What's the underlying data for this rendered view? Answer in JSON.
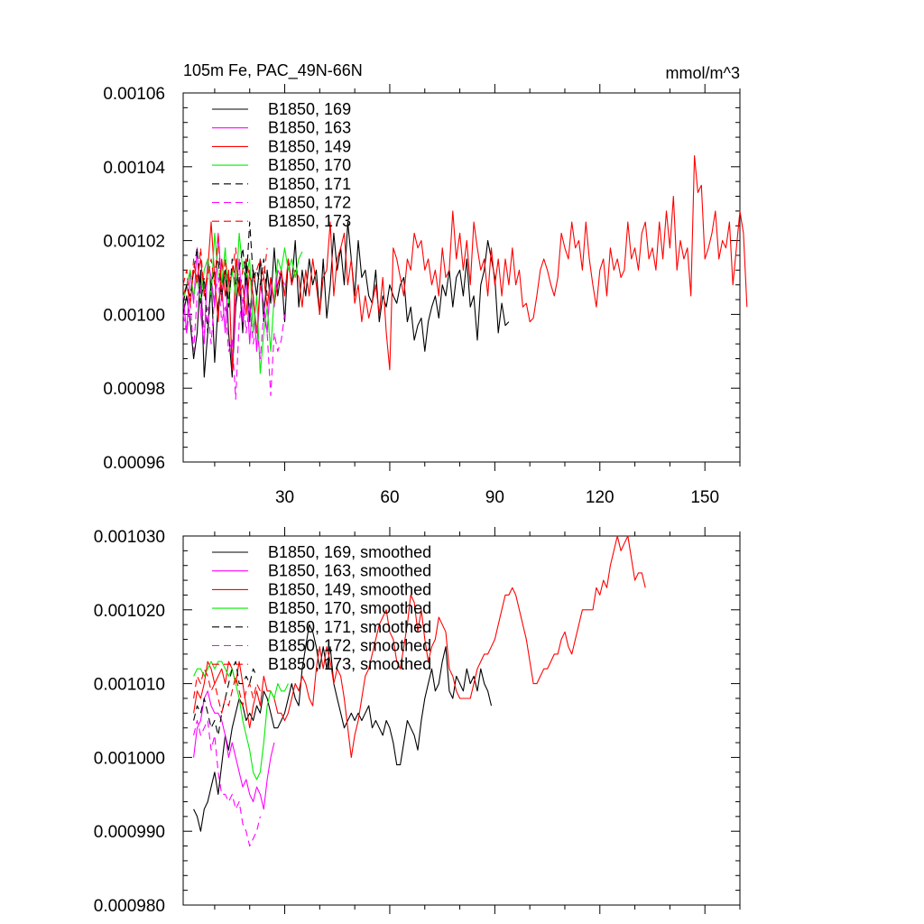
{
  "figure": {
    "title_left": "105m Fe, PAC_49N-66N",
    "title_right": "mmol/m^3"
  },
  "colors": {
    "169": "#000000",
    "163": "#ff00ff",
    "149": "#ff0000",
    "170": "#00ee00",
    "171": "#000000",
    "172": "#ff00ff",
    "173": "#ff0000"
  },
  "chart_data": [
    {
      "type": "line",
      "title": "105m Fe, PAC_49N-66N",
      "units": "mmol/m^3",
      "xlabel": "",
      "ylabel": "",
      "xlim": [
        1,
        160
      ],
      "ylim": [
        0.00096,
        0.00106
      ],
      "xticks": [
        30,
        60,
        90,
        120,
        150
      ],
      "xtick_labels": [
        "30",
        "60",
        "90",
        "120",
        "150"
      ],
      "yticks": [
        0.00096,
        0.00098,
        0.001,
        0.00102,
        0.00104,
        0.00106
      ],
      "ytick_labels": [
        "0.00096",
        "0.00098",
        "0.00100",
        "0.00102",
        "0.00104",
        "0.00106"
      ],
      "legend_position": "top-left",
      "series": [
        {
          "name": "B1850, 169",
          "id": "169",
          "dash": "solid",
          "x0": 1,
          "values": [
            0.001,
            0.001005,
            0.000998,
            0.000988,
            0.000995,
            0.001012,
            0.000983,
            0.000995,
            0.00101,
            0.000987,
            0.001003,
            0.001008,
            0.001012,
            0.000995,
            0.000983,
            0.001002,
            0.00101,
            0.000995,
            0.001015,
            0.000998,
            0.001012,
            0.001005,
            0.001015,
            0.000998,
            0.001012,
            0.001003,
            0.001018,
            0.001005,
            0.001012,
            0.000998,
            0.001015,
            0.001008,
            0.00102,
            0.001002,
            0.001012,
            0.001005,
            0.001015,
            0.001008,
            0.001012,
            0.001,
            0.001015,
            0.000999,
            0.001008,
            0.001022,
            0.001012,
            0.001018,
            0.001008,
            0.001025,
            0.001015,
            0.001005,
            0.00102,
            0.00101,
            0.001012,
            0.001005,
            0.001003,
            0.001012,
            0.000998,
            0.001005,
            0.001002,
            0.001008,
            0.001005,
            0.001003,
            0.001008,
            0.00101,
            0.000998,
            0.001002,
            0.000993,
            0.000997,
            0.000999,
            0.00099,
            0.000998,
            0.001002,
            0.001005,
            0.000999,
            0.001008,
            0.001005,
            0.001012,
            0.001002,
            0.00101,
            0.001012,
            0.001005,
            0.001015,
            0.001002,
            0.001005,
            0.000993,
            0.001008,
            0.001012,
            0.00102,
            0.001015,
            0.00101,
            0.000995,
            0.001003,
            0.000997,
            0.000998
          ]
        },
        {
          "name": "B1850, 163",
          "id": "163",
          "dash": "solid",
          "x0": 1,
          "values": [
            0.001005,
            0.000995,
            0.001012,
            0.001003,
            0.001018,
            0.001,
            0.000992,
            0.001015,
            0.00101,
            0.001002,
            0.001022,
            0.001008,
            0.000995,
            0.001012,
            0.000985,
            0.001005,
            0.001015,
            0.000998,
            0.00101,
            0.000992,
            0.001005,
            0.00099,
            0.001008,
            0.001003,
            0.000995,
            0.00101,
            0.001002,
            0.001012,
            0.00101,
            0.001008
          ]
        },
        {
          "name": "B1850, 149",
          "id": "149",
          "dash": "solid",
          "x0": 1,
          "values": [
            0.001005,
            0.001008,
            0.001003,
            0.001012,
            0.00101,
            0.001015,
            0.001005,
            0.001012,
            0.001025,
            0.00101,
            0.000998,
            0.001015,
            0.001005,
            0.001012,
            0.000985,
            0.001015,
            0.001005,
            0.001008,
            0.001,
            0.001012,
            0.001005,
            0.000995,
            0.001008,
            0.00101,
            0.001002,
            0.00101,
            0.001003,
            0.001008,
            0.001012,
            0.001005,
            0.001015,
            0.001008,
            0.001012,
            0.00101,
            0.001002,
            0.001012,
            0.001005,
            0.001015,
            0.001008,
            0.001,
            0.00101,
            0.001012,
            0.001025,
            0.001005,
            0.001015,
            0.001018,
            0.001022,
            0.001008,
            0.001015,
            0.001003,
            0.001008,
            0.000998,
            0.001005,
            0.000999,
            0.001003,
            0.001008,
            0.001,
            0.00101,
            0.000995,
            0.000985,
            0.001018,
            0.001015,
            0.00101,
            0.001005,
            0.001015,
            0.001012,
            0.001022,
            0.001018,
            0.00102,
            0.001012,
            0.001015,
            0.001008,
            0.001012,
            0.001005,
            0.001018,
            0.00101,
            0.001012,
            0.001028,
            0.001015,
            0.001022,
            0.001012,
            0.00102,
            0.001008,
            0.001025,
            0.001018,
            0.001012,
            0.001015,
            0.001005,
            0.001018,
            0.001008,
            0.001015,
            0.001005,
            0.001015,
            0.001008,
            0.001018,
            0.001008,
            0.001012,
            0.001002,
            0.001003,
            0.000998,
            0.000999,
            0.001005,
            0.001012,
            0.001015,
            0.001012,
            0.001008,
            0.001005,
            0.00101,
            0.001022,
            0.001018,
            0.001015,
            0.001025,
            0.001018,
            0.00102,
            0.001012,
            0.001025,
            0.001015,
            0.001008,
            0.001002,
            0.001012,
            0.001015,
            0.001005,
            0.001018,
            0.001012,
            0.001015,
            0.00101,
            0.001012,
            0.001025,
            0.001015,
            0.001018,
            0.001012,
            0.001022,
            0.001025,
            0.001015,
            0.001018,
            0.001012,
            0.001025,
            0.001015,
            0.001028,
            0.001018,
            0.001032,
            0.001012,
            0.00102,
            0.001015,
            0.001018,
            0.001005,
            0.001043,
            0.001033,
            0.001035,
            0.001015,
            0.001018,
            0.001022,
            0.001028,
            0.001015,
            0.00102,
            0.001018,
            0.001025,
            0.001008,
            0.001018,
            0.001028,
            0.001022,
            0.001002
          ]
        },
        {
          "name": "B1850, 170",
          "id": "170",
          "dash": "solid",
          "x0": 1,
          "values": [
            0.001003,
            0.001008,
            0.001012,
            0.001005,
            0.00101,
            0.001003,
            0.001012,
            0.001015,
            0.001005,
            0.001022,
            0.00101,
            0.001008,
            0.001018,
            0.001003,
            0.001012,
            0.001005,
            0.001022,
            0.001012,
            0.00101,
            0.001015,
            0.000995,
            0.001005,
            0.000984,
            0.000995,
            0.001002,
            0.00099,
            0.001005,
            0.001015,
            0.001012,
            0.001018,
            0.001012,
            0.001015,
            0.00101,
            0.001015,
            0.001017
          ]
        },
        {
          "name": "B1850, 171",
          "id": "171",
          "dash": "dash",
          "x0": 1,
          "values": [
            0.001003,
            0.001008,
            0.001005,
            0.001012,
            0.001018,
            0.001003,
            0.00101,
            0.000995,
            0.001008,
            0.001012,
            0.001015,
            0.001005,
            0.001012,
            0.001002,
            0.001015,
            0.001008,
            0.001012,
            0.001018,
            0.001008,
            0.001025,
            0.00101,
            0.001012,
            0.001008,
            0.001015,
            0.001005
          ]
        },
        {
          "name": "B1850, 172",
          "id": "172",
          "dash": "dash",
          "x0": 1,
          "values": [
            0.001,
            0.000995,
            0.001003,
            0.00099,
            0.001005,
            0.001008,
            0.000995,
            0.001002,
            0.000992,
            0.001005,
            0.00101,
            0.000998,
            0.001002,
            0.00099,
            0.000993,
            0.000977,
            0.000998,
            0.001005,
            0.000995,
            0.001003,
            0.000992,
            0.000997,
            0.000988,
            0.001,
            0.000995,
            0.000978,
            0.000995,
            0.00099,
            0.000993,
            0.001
          ]
        },
        {
          "name": "B1850, 173",
          "id": "173",
          "dash": "dash",
          "x0": 1,
          "values": [
            0.001008,
            0.001012,
            0.001002,
            0.001015,
            0.001008,
            0.001018,
            0.001005,
            0.00101,
            0.001015,
            0.001008,
            0.001022,
            0.001003,
            0.001015,
            0.001008,
            0.001012,
            0.001018,
            0.001005,
            0.001012,
            0.001015,
            0.00101,
            0.001008,
            0.001012,
            0.001015,
            0.00101,
            0.001018
          ]
        }
      ]
    },
    {
      "type": "line",
      "title": "",
      "xlabel": "",
      "ylabel": "",
      "xlim": [
        1,
        160
      ],
      "ylim": [
        0.00098,
        0.00103
      ],
      "xticks": [
        30,
        60,
        90,
        120,
        150
      ],
      "xtick_labels": [],
      "yticks": [
        0.00098,
        0.00099,
        0.001,
        0.00101,
        0.00102,
        0.00103
      ],
      "ytick_labels": [
        "0.000980",
        "0.000990",
        "0.001000",
        "0.001010",
        "0.001020",
        "0.001030"
      ],
      "legend_position": "top-left",
      "series": [
        {
          "name": "B1850, 169, smoothed",
          "id": "169",
          "dash": "solid",
          "x0": 4,
          "values": [
            0.000993,
            0.000992,
            0.00099,
            0.000993,
            0.000994,
            0.000996,
            0.000998,
            0.000995,
            0.000999,
            0.001003,
            0.001001,
            0.001004,
            0.001006,
            0.001008,
            0.001007,
            0.001005,
            0.001006,
            0.001005,
            0.001007,
            0.001006,
            0.001009,
            0.001008,
            0.001006,
            0.001004,
            0.001004,
            0.001005,
            0.001006,
            0.001008,
            0.00101,
            0.001008,
            0.001007,
            0.001012,
            0.001015,
            0.001018,
            0.001017,
            0.001015,
            0.001012,
            0.001015,
            0.001012,
            0.001015,
            0.00101,
            0.001008,
            0.001006,
            0.001004,
            0.001005,
            0.001006,
            0.001005,
            0.001006,
            0.001005,
            0.001006,
            0.001007,
            0.001004,
            0.001005,
            0.001004,
            0.001003,
            0.001005,
            0.001004,
            0.001002,
            0.000999,
            0.000999,
            0.001002,
            0.001005,
            0.001004,
            0.001003,
            0.001001,
            0.001005,
            0.001008,
            0.00101,
            0.001012,
            0.001009,
            0.00101,
            0.001013,
            0.001015,
            0.001009,
            0.001008,
            0.001011,
            0.00101,
            0.001009,
            0.001012,
            0.00101,
            0.001011,
            0.001009,
            0.001012,
            0.00101,
            0.001009,
            0.001007
          ]
        },
        {
          "name": "B1850, 163, smoothed",
          "id": "163",
          "dash": "solid",
          "x0": 4,
          "values": [
            0.001,
            0.001004,
            0.001005,
            0.001008,
            0.001009,
            0.001007,
            0.001006,
            0.001006,
            0.001005,
            0.001003,
            0.001,
            0.001002,
            0.001,
            0.000998,
            0.000996,
            0.000997,
            0.000995,
            0.000994,
            0.000996,
            0.000995,
            0.000993,
            0.000997,
            0.001,
            0.001002
          ]
        },
        {
          "name": "B1850, 149, smoothed",
          "id": "149",
          "dash": "solid",
          "x0": 4,
          "values": [
            0.001006,
            0.001009,
            0.001008,
            0.00101,
            0.001013,
            0.001012,
            0.00101,
            0.001011,
            0.001012,
            0.00101,
            0.001013,
            0.001012,
            0.00101,
            0.001013,
            0.00101,
            0.001007,
            0.001004,
            0.001007,
            0.001009,
            0.001007,
            0.001011,
            0.001009,
            0.001009,
            0.001008,
            0.001006,
            0.001006,
            0.001005,
            0.001006,
            0.001008,
            0.00101,
            0.001009,
            0.001011,
            0.00101,
            0.001008,
            0.001007,
            0.001012,
            0.001015,
            0.001012,
            0.001015,
            0.001013,
            0.00101,
            0.001012,
            0.001011,
            0.001008,
            0.001004,
            0.001,
            0.001003,
            0.001005,
            0.001008,
            0.001011,
            0.001012,
            0.001014,
            0.001016,
            0.001018,
            0.001019,
            0.00102,
            0.001017,
            0.001016,
            0.001013,
            0.001012,
            0.001015,
            0.001018,
            0.001022,
            0.001021,
            0.001017,
            0.00102,
            0.001016,
            0.001013,
            0.001015,
            0.001016,
            0.001019,
            0.001018,
            0.001017,
            0.001012,
            0.001011,
            0.001009,
            0.001008,
            0.001008,
            0.001008,
            0.001008,
            0.00101,
            0.001012,
            0.001013,
            0.001014,
            0.001014,
            0.001015,
            0.001016,
            0.001018,
            0.00102,
            0.001022,
            0.001022,
            0.001023,
            0.001022,
            0.00102,
            0.001018,
            0.001016,
            0.001013,
            0.00101,
            0.00101,
            0.001011,
            0.001012,
            0.001012,
            0.001013,
            0.001014,
            0.001014,
            0.001016,
            0.001017,
            0.001015,
            0.001014,
            0.001016,
            0.001018,
            0.00102,
            0.00102,
            0.00102,
            0.00102,
            0.001023,
            0.001022,
            0.001024,
            0.001023,
            0.001026,
            0.001028,
            0.00103,
            0.001028,
            0.001029,
            0.00103,
            0.001027,
            0.001024,
            0.001025,
            0.001025,
            0.001023
          ]
        },
        {
          "name": "B1850, 170, smoothed",
          "id": "170",
          "dash": "solid",
          "x0": 4,
          "values": [
            0.001011,
            0.001012,
            0.001012,
            0.001011,
            0.001012,
            0.001013,
            0.001012,
            0.001013,
            0.001013,
            0.001012,
            0.001011,
            0.001012,
            0.00101,
            0.001008,
            0.001005,
            0.001003,
            0.001001,
            0.000998,
            0.000997,
            0.000998,
            0.001002,
            0.001007,
            0.001009,
            0.001008,
            0.00101,
            0.001009,
            0.001009,
            0.00101
          ]
        },
        {
          "name": "B1850, 171, smoothed",
          "id": "171",
          "dash": "dash",
          "x0": 4,
          "values": [
            0.001005,
            0.001007,
            0.001006,
            0.001008,
            0.001006,
            0.001004,
            0.001005,
            0.001003,
            0.001006,
            0.001008,
            0.00101,
            0.001012,
            0.001013,
            0.00101,
            0.00101,
            0.001011,
            0.00101,
            0.001012,
            0.001011
          ]
        },
        {
          "name": "B1850, 172, smoothed",
          "id": "172",
          "dash": "dash",
          "x0": 4,
          "values": [
            0.001003,
            0.001005,
            0.001003,
            0.001004,
            0.001005,
            0.001001,
            0.001003,
            0.000998,
            0.000995,
            0.000995,
            0.000994,
            0.000995,
            0.000993,
            0.000994,
            0.000991,
            0.00099,
            0.000988,
            0.000989,
            0.00099,
            0.000992
          ]
        },
        {
          "name": "B1850, 173, smoothed",
          "id": "173",
          "dash": "dash",
          "x0": 4,
          "values": [
            0.001008,
            0.001011,
            0.00101,
            0.001012,
            0.001011,
            0.001009,
            0.00101,
            0.001008,
            0.001006,
            0.001008,
            0.001007,
            0.001009,
            0.001011,
            0.001009,
            0.001007,
            0.001009,
            0.00101,
            0.001008,
            0.00101,
            0.001009
          ]
        }
      ]
    }
  ]
}
